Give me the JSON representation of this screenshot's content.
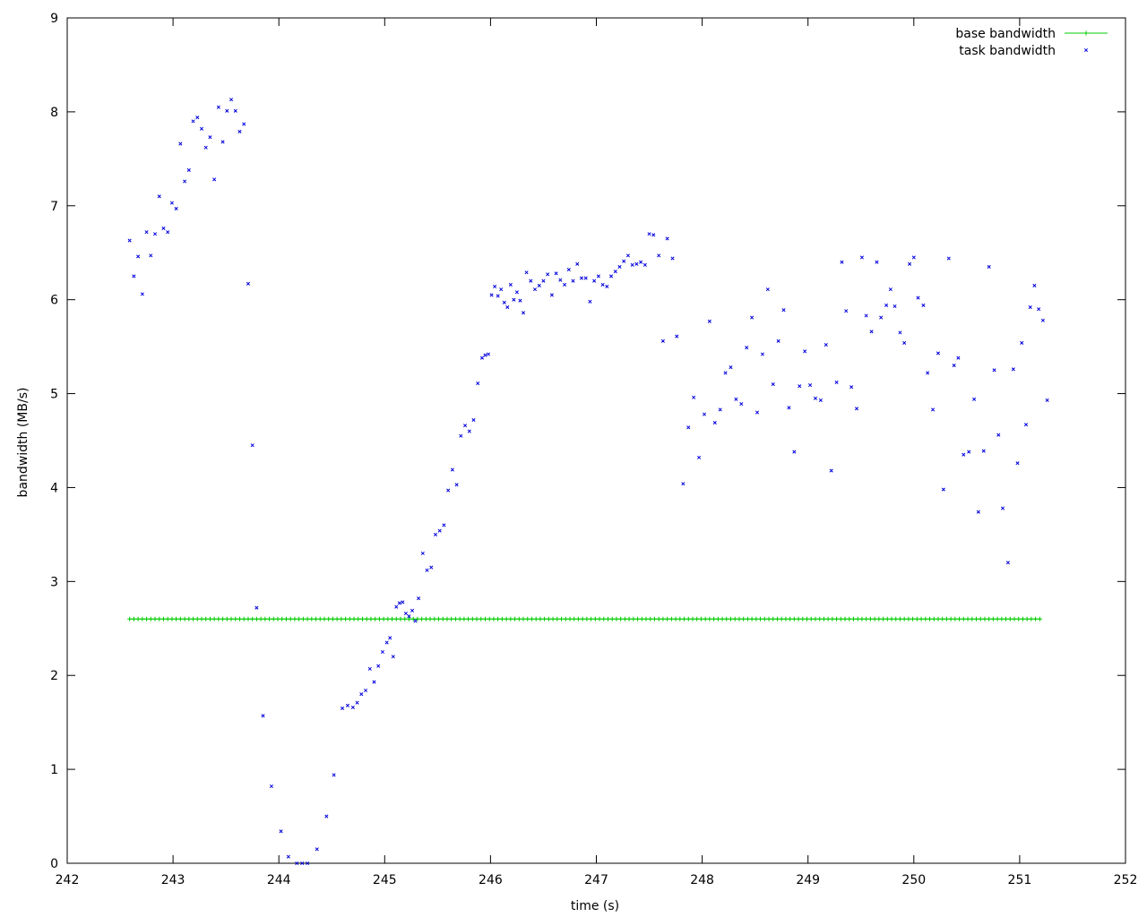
{
  "chart_data": {
    "type": "scatter",
    "title": "",
    "xlabel": "time (s)",
    "ylabel": "bandwidth (MB/s)",
    "xlim": [
      242,
      252
    ],
    "ylim": [
      0,
      9
    ],
    "x_ticks": [
      242,
      243,
      244,
      245,
      246,
      247,
      248,
      249,
      250,
      251,
      252
    ],
    "y_ticks": [
      0,
      1,
      2,
      3,
      4,
      5,
      6,
      7,
      8,
      9
    ],
    "grid": false,
    "legend_position": "top-right",
    "series": [
      {
        "name": "base bandwidth",
        "color": "#00cc00",
        "marker": "plus",
        "line": true,
        "constant_value": 2.6,
        "x_start": 242.59,
        "x_end": 251.2,
        "x_step": 0.04
      },
      {
        "name": "task bandwidth",
        "color": "#0000dd",
        "marker": "cross",
        "line": false,
        "points": [
          [
            242.59,
            6.63
          ],
          [
            242.63,
            6.25
          ],
          [
            242.67,
            6.46
          ],
          [
            242.71,
            6.06
          ],
          [
            242.75,
            6.72
          ],
          [
            242.79,
            6.47
          ],
          [
            242.83,
            6.7
          ],
          [
            242.87,
            7.1
          ],
          [
            242.91,
            6.76
          ],
          [
            242.95,
            6.72
          ],
          [
            242.99,
            7.03
          ],
          [
            243.03,
            6.97
          ],
          [
            243.07,
            7.66
          ],
          [
            243.11,
            7.26
          ],
          [
            243.15,
            7.38
          ],
          [
            243.19,
            7.9
          ],
          [
            243.23,
            7.94
          ],
          [
            243.27,
            7.82
          ],
          [
            243.31,
            7.62
          ],
          [
            243.35,
            7.73
          ],
          [
            243.39,
            7.28
          ],
          [
            243.43,
            8.05
          ],
          [
            243.47,
            7.68
          ],
          [
            243.51,
            8.01
          ],
          [
            243.55,
            8.13
          ],
          [
            243.59,
            8.01
          ],
          [
            243.63,
            7.79
          ],
          [
            243.67,
            7.87
          ],
          [
            243.71,
            6.17
          ],
          [
            243.75,
            4.45
          ],
          [
            243.79,
            2.72
          ],
          [
            243.85,
            1.57
          ],
          [
            243.93,
            0.82
          ],
          [
            244.02,
            0.34
          ],
          [
            244.09,
            0.07
          ],
          [
            244.17,
            0.0
          ],
          [
            244.22,
            0.0
          ],
          [
            244.27,
            0.0
          ],
          [
            244.36,
            0.15
          ],
          [
            244.45,
            0.5
          ],
          [
            244.52,
            0.94
          ],
          [
            244.6,
            1.65
          ],
          [
            244.65,
            1.68
          ],
          [
            244.7,
            1.66
          ],
          [
            244.74,
            1.71
          ],
          [
            244.78,
            1.8
          ],
          [
            244.82,
            1.84
          ],
          [
            244.86,
            2.07
          ],
          [
            244.9,
            1.93
          ],
          [
            244.94,
            2.1
          ],
          [
            244.98,
            2.25
          ],
          [
            245.02,
            2.35
          ],
          [
            245.05,
            2.4
          ],
          [
            245.08,
            2.2
          ],
          [
            245.11,
            2.73
          ],
          [
            245.14,
            2.77
          ],
          [
            245.17,
            2.78
          ],
          [
            245.2,
            2.66
          ],
          [
            245.23,
            2.63
          ],
          [
            245.26,
            2.69
          ],
          [
            245.29,
            2.58
          ],
          [
            245.32,
            2.82
          ],
          [
            245.36,
            3.3
          ],
          [
            245.4,
            3.12
          ],
          [
            245.44,
            3.15
          ],
          [
            245.48,
            3.5
          ],
          [
            245.52,
            3.54
          ],
          [
            245.56,
            3.6
          ],
          [
            245.6,
            3.97
          ],
          [
            245.64,
            4.19
          ],
          [
            245.68,
            4.03
          ],
          [
            245.72,
            4.55
          ],
          [
            245.76,
            4.66
          ],
          [
            245.8,
            4.6
          ],
          [
            245.84,
            4.72
          ],
          [
            245.88,
            5.11
          ],
          [
            245.92,
            5.38
          ],
          [
            245.95,
            5.41
          ],
          [
            245.98,
            5.42
          ],
          [
            246.01,
            6.05
          ],
          [
            246.04,
            6.14
          ],
          [
            246.07,
            6.04
          ],
          [
            246.1,
            6.11
          ],
          [
            246.13,
            5.97
          ],
          [
            246.16,
            5.92
          ],
          [
            246.19,
            6.16
          ],
          [
            246.22,
            6.0
          ],
          [
            246.25,
            6.08
          ],
          [
            246.28,
            5.99
          ],
          [
            246.31,
            5.86
          ],
          [
            246.34,
            6.29
          ],
          [
            246.38,
            6.2
          ],
          [
            246.42,
            6.11
          ],
          [
            246.46,
            6.15
          ],
          [
            246.5,
            6.2
          ],
          [
            246.54,
            6.27
          ],
          [
            246.58,
            6.05
          ],
          [
            246.62,
            6.28
          ],
          [
            246.66,
            6.21
          ],
          [
            246.7,
            6.16
          ],
          [
            246.74,
            6.32
          ],
          [
            246.78,
            6.2
          ],
          [
            246.82,
            6.38
          ],
          [
            246.86,
            6.23
          ],
          [
            246.9,
            6.23
          ],
          [
            246.94,
            5.98
          ],
          [
            246.98,
            6.2
          ],
          [
            247.02,
            6.25
          ],
          [
            247.06,
            6.16
          ],
          [
            247.1,
            6.14
          ],
          [
            247.14,
            6.25
          ],
          [
            247.18,
            6.3
          ],
          [
            247.22,
            6.35
          ],
          [
            247.26,
            6.41
          ],
          [
            247.3,
            6.47
          ],
          [
            247.34,
            6.37
          ],
          [
            247.38,
            6.38
          ],
          [
            247.42,
            6.4
          ],
          [
            247.46,
            6.37
          ],
          [
            247.5,
            6.7
          ],
          [
            247.54,
            6.69
          ],
          [
            247.59,
            6.47
          ],
          [
            247.63,
            5.56
          ],
          [
            247.67,
            6.65
          ],
          [
            247.72,
            6.44
          ],
          [
            247.76,
            5.61
          ],
          [
            247.82,
            4.04
          ],
          [
            247.87,
            4.64
          ],
          [
            247.92,
            4.96
          ],
          [
            247.97,
            4.32
          ],
          [
            248.02,
            4.78
          ],
          [
            248.07,
            5.77
          ],
          [
            248.12,
            4.69
          ],
          [
            248.17,
            4.83
          ],
          [
            248.22,
            5.22
          ],
          [
            248.27,
            5.28
          ],
          [
            248.32,
            4.94
          ],
          [
            248.37,
            4.89
          ],
          [
            248.42,
            5.49
          ],
          [
            248.47,
            5.81
          ],
          [
            248.52,
            4.8
          ],
          [
            248.57,
            5.42
          ],
          [
            248.62,
            6.11
          ],
          [
            248.67,
            5.1
          ],
          [
            248.72,
            5.56
          ],
          [
            248.77,
            5.89
          ],
          [
            248.82,
            4.85
          ],
          [
            248.87,
            4.38
          ],
          [
            248.92,
            5.08
          ],
          [
            248.97,
            5.45
          ],
          [
            249.02,
            5.09
          ],
          [
            249.07,
            4.95
          ],
          [
            249.12,
            4.93
          ],
          [
            249.17,
            5.52
          ],
          [
            249.22,
            4.18
          ],
          [
            249.27,
            5.12
          ],
          [
            249.32,
            6.4
          ],
          [
            249.36,
            5.88
          ],
          [
            249.41,
            5.07
          ],
          [
            249.46,
            4.84
          ],
          [
            249.51,
            6.45
          ],
          [
            249.55,
            5.83
          ],
          [
            249.6,
            5.66
          ],
          [
            249.65,
            6.4
          ],
          [
            249.69,
            5.81
          ],
          [
            249.74,
            5.94
          ],
          [
            249.78,
            6.11
          ],
          [
            249.82,
            5.93
          ],
          [
            249.87,
            5.65
          ],
          [
            249.91,
            5.54
          ],
          [
            249.96,
            6.38
          ],
          [
            250.0,
            6.45
          ],
          [
            250.04,
            6.02
          ],
          [
            250.09,
            5.94
          ],
          [
            250.13,
            5.22
          ],
          [
            250.18,
            4.83
          ],
          [
            250.23,
            5.43
          ],
          [
            250.28,
            3.98
          ],
          [
            250.33,
            6.44
          ],
          [
            250.38,
            5.3
          ],
          [
            250.42,
            5.38
          ],
          [
            250.47,
            4.35
          ],
          [
            250.52,
            4.38
          ],
          [
            250.57,
            4.94
          ],
          [
            250.61,
            3.74
          ],
          [
            250.66,
            4.39
          ],
          [
            250.71,
            6.35
          ],
          [
            250.76,
            5.25
          ],
          [
            250.8,
            4.56
          ],
          [
            250.84,
            3.78
          ],
          [
            250.89,
            3.2
          ],
          [
            250.94,
            5.26
          ],
          [
            250.98,
            4.26
          ],
          [
            251.02,
            5.54
          ],
          [
            251.06,
            4.67
          ],
          [
            251.1,
            5.92
          ],
          [
            251.14,
            6.15
          ],
          [
            251.18,
            5.9
          ],
          [
            251.22,
            5.78
          ],
          [
            251.26,
            4.93
          ]
        ]
      }
    ]
  }
}
